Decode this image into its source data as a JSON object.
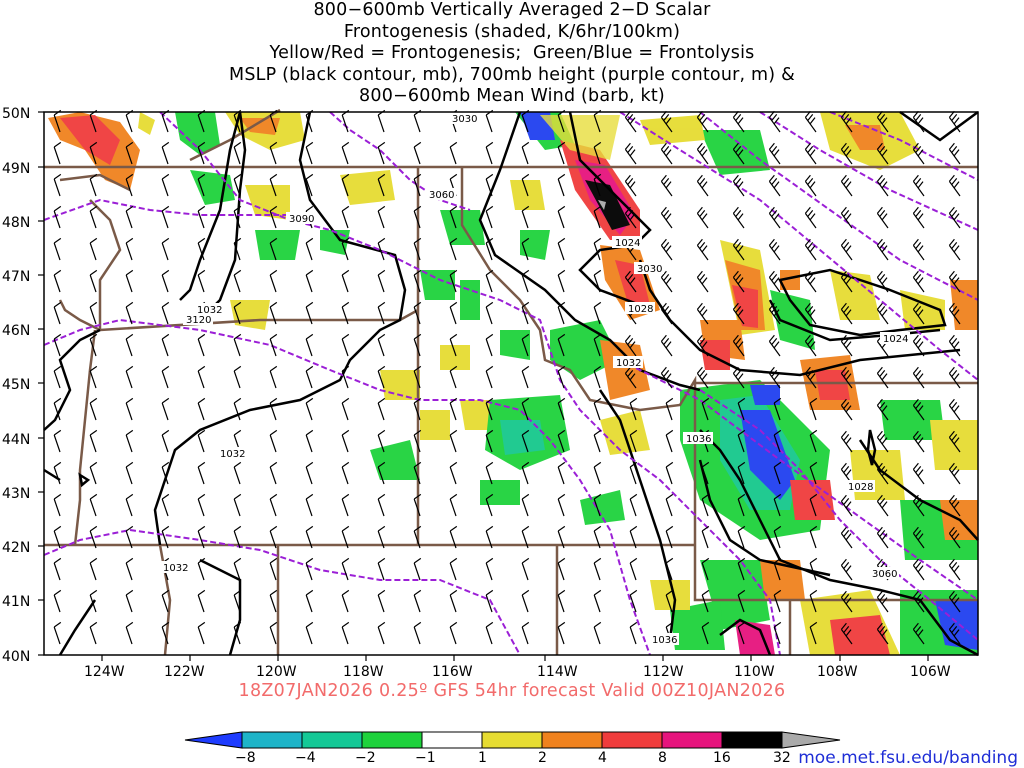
{
  "title_lines": [
    "800−600mb Vertically Averaged 2−D Scalar",
    "Frontogenesis (shaded, K/6hr/100km)",
    "Yellow/Red = Frontogenesis;  Green/Blue = Frontolysis",
    "MSLP (black contour, mb), 700mb height (purple contour, m) &",
    "800−600mb Mean Wind (barb, kt)"
  ],
  "map": {
    "lon_labels": [
      "124W",
      "122W",
      "120W",
      "118W",
      "116W",
      "114W",
      "112W",
      "110W",
      "108W",
      "106W"
    ],
    "lat_labels": [
      "50N",
      "49N",
      "48N",
      "47N",
      "46N",
      "45N",
      "44N",
      "43N",
      "42N",
      "41N",
      "40N"
    ],
    "mslp_labels": [
      "1032",
      "1032",
      "1032",
      "1024",
      "1028",
      "1032",
      "1036",
      "1028",
      "1024",
      "1036"
    ],
    "height_labels": [
      "3030",
      "3060",
      "3090",
      "3120",
      "3030",
      "3060"
    ],
    "colors": {
      "mslp": "#000000",
      "height": "#9b1fd6",
      "borders": "#7a5a48",
      "frontogenesis_yellow": "#e6dc32",
      "frontogenesis_orange": "#f0821e",
      "frontogenesis_red": "#f03c3c",
      "frontolysis_green": "#1ed21e",
      "frontolysis_teal": "#16c88c",
      "frontolysis_blue": "#2040f0"
    }
  },
  "footer": "18Z07JAN2026 0.25º GFS 54hr forecast Valid 00Z10JAN2026",
  "colorbar": {
    "labels": [
      "−8",
      "−4",
      "−2",
      "−1",
      "1",
      "2",
      "4",
      "8",
      "16",
      "32"
    ],
    "colors": [
      "#1e3cff",
      "#1eb4c8",
      "#14c896",
      "#1ed23c",
      "#ffffff",
      "#e6dc32",
      "#f0821e",
      "#f03c3c",
      "#e6147d",
      "#000000",
      "#aaaaaa"
    ]
  },
  "credit": "moe.met.fsu.edu/banding"
}
